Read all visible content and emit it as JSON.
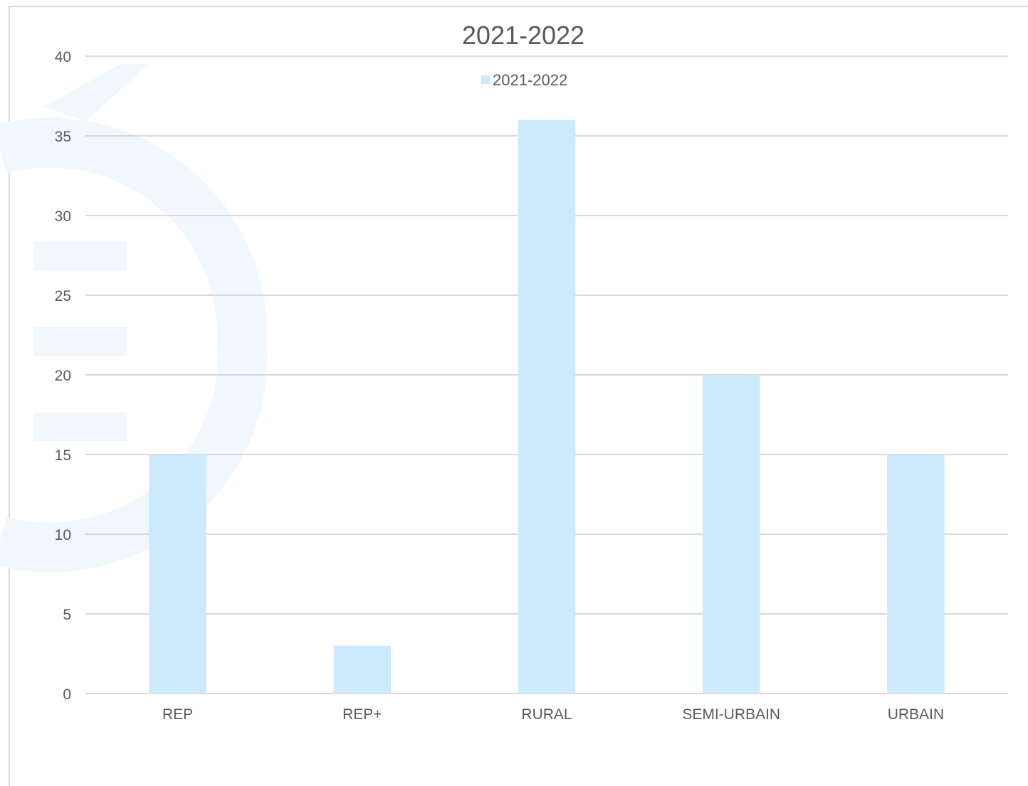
{
  "chart_data": {
    "type": "bar",
    "title": "2021-2022",
    "categories": [
      "REP",
      "REP+",
      "RURAL",
      "SEMI-URBAIN",
      "URBAIN"
    ],
    "series": [
      {
        "name": "2021-2022",
        "values": [
          15,
          3,
          36,
          20,
          15
        ],
        "color": "#cceafb"
      }
    ],
    "ylim": [
      0,
      40
    ],
    "yticks": [
      0,
      5,
      10,
      15,
      20,
      25,
      30,
      35,
      40
    ],
    "grid": true,
    "legend_position": "top",
    "colors": {
      "grid": "#d9d9d9",
      "text": "#595959",
      "watermark": "#eef6fd"
    }
  }
}
